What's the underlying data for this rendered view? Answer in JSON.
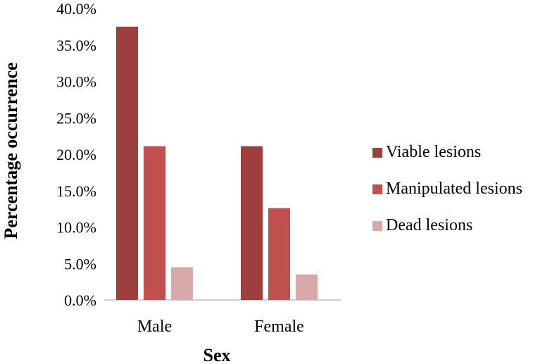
{
  "chart_data": {
    "type": "bar",
    "title": "",
    "xlabel": "Sex",
    "ylabel": "Percentage occurrence",
    "categories": [
      "Male",
      "Female"
    ],
    "ylim": [
      0,
      40
    ],
    "yticks": [
      "0.0%",
      "5.0%",
      "10.0%",
      "15.0%",
      "20.0%",
      "25.0%",
      "30.0%",
      "35.0%",
      "40.0%"
    ],
    "grid": false,
    "legend_position": "right",
    "series": [
      {
        "name": "Viable lesions",
        "color": "#9e3f3f",
        "values": [
          37.5,
          21.1
        ]
      },
      {
        "name": "Manipulated lesions",
        "color": "#c0504d",
        "values": [
          21.1,
          12.6
        ]
      },
      {
        "name": "Dead lesions",
        "color": "#d9a8a8",
        "values": [
          4.5,
          3.5
        ]
      }
    ]
  }
}
